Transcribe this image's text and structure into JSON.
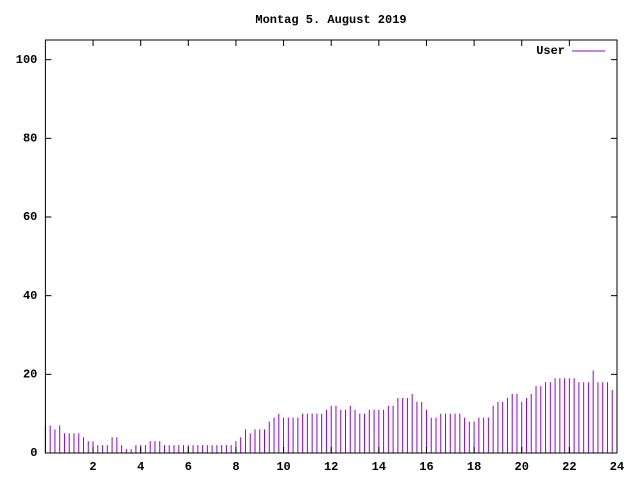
{
  "chart_data": {
    "type": "impulses",
    "title": "Montag 5. August 2019",
    "xlim": [
      0,
      24
    ],
    "xticks": [
      2,
      4,
      6,
      8,
      10,
      12,
      14,
      16,
      18,
      20,
      22,
      24
    ],
    "ylim": [
      0,
      105
    ],
    "yticks": [
      0,
      20,
      40,
      60,
      80,
      100
    ],
    "legend": "top-right",
    "series": [
      {
        "name": "User",
        "color": "#9400d3",
        "x": [
          0,
          0.2,
          0.4,
          0.6,
          0.8,
          1,
          1.2,
          1.4,
          1.6,
          1.8,
          2,
          2.2,
          2.4,
          2.6,
          2.8,
          3,
          3.2,
          3.4,
          3.6,
          3.8,
          4,
          4.2,
          4.4,
          4.6,
          4.8,
          5,
          5.2,
          5.4,
          5.6,
          5.8,
          6,
          6.2,
          6.4,
          6.6,
          6.8,
          7,
          7.2,
          7.4,
          7.6,
          7.8,
          8,
          8.2,
          8.4,
          8.6,
          8.8,
          9,
          9.2,
          9.4,
          9.6,
          9.8,
          10,
          10.2,
          10.4,
          10.6,
          10.8,
          11,
          11.2,
          11.4,
          11.6,
          11.8,
          12,
          12.2,
          12.4,
          12.6,
          12.8,
          13,
          13.2,
          13.4,
          13.6,
          13.8,
          14,
          14.2,
          14.4,
          14.6,
          14.8,
          15,
          15.2,
          15.4,
          15.6,
          15.8,
          16,
          16.2,
          16.4,
          16.6,
          16.8,
          17,
          17.2,
          17.4,
          17.6,
          17.8,
          18,
          18.2,
          18.4,
          18.6,
          18.8,
          19,
          19.2,
          19.4,
          19.6,
          19.8,
          20,
          20.2,
          20.4,
          20.6,
          20.8,
          21,
          21.2,
          21.4,
          21.6,
          21.8,
          22,
          22.2,
          22.4,
          22.6,
          22.8,
          23,
          23.2,
          23.4,
          23.6,
          23.8,
          24
        ],
        "values": [
          7,
          7,
          6,
          7,
          5,
          5,
          5,
          5,
          4,
          3,
          3,
          2,
          2,
          2,
          4,
          4,
          2,
          1,
          1,
          2,
          2,
          2,
          3,
          3,
          3,
          2,
          2,
          2,
          2,
          2,
          2,
          2,
          2,
          2,
          2,
          2,
          2,
          2,
          2,
          2,
          3,
          4,
          6,
          5,
          6,
          6,
          6,
          8,
          9,
          10,
          9,
          9,
          9,
          9,
          10,
          10,
          10,
          10,
          10,
          11,
          12,
          12,
          11,
          11,
          12,
          11,
          10,
          10,
          11,
          11,
          11,
          11,
          12,
          12,
          14,
          14,
          14,
          15,
          13,
          13,
          11,
          9,
          9,
          10,
          10,
          10,
          10,
          10,
          9,
          8,
          8,
          9,
          9,
          9,
          12,
          13,
          13,
          14,
          15,
          15,
          13,
          14,
          15,
          17,
          17,
          18,
          18,
          19,
          19,
          19,
          19,
          19,
          18,
          18,
          18,
          21,
          18,
          18,
          18,
          16,
          13
        ]
      }
    ]
  }
}
